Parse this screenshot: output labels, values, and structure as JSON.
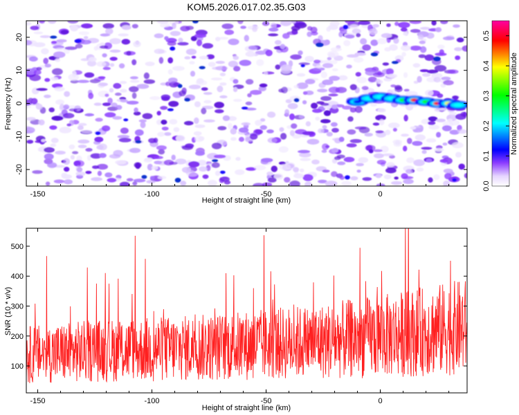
{
  "title": "KOM5.2026.017.02.35.G03",
  "chart_data": [
    {
      "type": "heatmap",
      "name": "spectrogram",
      "xlabel": "Height of straight line (km)",
      "ylabel": "Frequency (Hz)",
      "xlim": [
        -155,
        38
      ],
      "ylim": [
        -25,
        25
      ],
      "xticks": [
        -150,
        -100,
        -50,
        0
      ],
      "yticks": [
        -20,
        -10,
        0,
        10,
        20
      ],
      "xtick_labels": [
        "-150",
        "-100",
        "-50",
        "0"
      ],
      "ytick_labels": [
        "-20",
        "-10",
        "0",
        "10",
        "20"
      ],
      "colorbar": {
        "label": "Normalized spectral amplitude",
        "range": [
          0.0,
          0.55
        ],
        "ticks": [
          0.0,
          0.1,
          0.2,
          0.3,
          0.4,
          0.5
        ],
        "tick_labels": [
          "0.0",
          "0.1",
          "0.2",
          "0.3",
          "0.4",
          "0.5"
        ],
        "colors": [
          "#ffffff",
          "#8c3cff",
          "#0000ff",
          "#00ffff",
          "#00ff00",
          "#ffff00",
          "#ff0000",
          "#ff00a0"
        ]
      },
      "features": [
        {
          "x": -10,
          "y": 0.5,
          "amplitude": 0.12
        },
        {
          "x": -5,
          "y": 1.5,
          "amplitude": 0.14
        },
        {
          "x": 0,
          "y": 2.0,
          "amplitude": 0.15
        },
        {
          "x": 5,
          "y": 1.5,
          "amplitude": 0.2
        },
        {
          "x": 10,
          "y": 1.0,
          "amplitude": 0.25
        },
        {
          "x": 15,
          "y": 1.0,
          "amplitude": 0.4
        },
        {
          "x": 20,
          "y": 0.5,
          "amplitude": 0.3
        },
        {
          "x": 25,
          "y": 0.0,
          "amplitude": 0.45
        },
        {
          "x": 30,
          "y": 0.0,
          "amplitude": 0.35
        },
        {
          "x": 34,
          "y": -0.5,
          "amplitude": 0.2
        }
      ]
    },
    {
      "type": "line",
      "name": "snr",
      "xlabel": "Height of straight line (km)",
      "ylabel": "SNR (10 * v/v)",
      "xlim": [
        -155,
        38
      ],
      "ylim": [
        10,
        560
      ],
      "xticks": [
        -150,
        -100,
        -50,
        0
      ],
      "yticks": [
        100,
        200,
        300,
        400,
        500
      ],
      "xtick_labels": [
        "-150",
        "-100",
        "-50",
        "0"
      ],
      "ytick_labels": [
        "100",
        "200",
        "300",
        "400",
        "500"
      ],
      "color": "#ff2020",
      "series": [
        {
          "name": "SNR",
          "x": [
            -150,
            -125,
            -100,
            -75,
            -50,
            -25,
            0,
            25,
            38
          ],
          "values": [
            130,
            140,
            145,
            150,
            160,
            170,
            185,
            205,
            215
          ]
        }
      ]
    }
  ]
}
